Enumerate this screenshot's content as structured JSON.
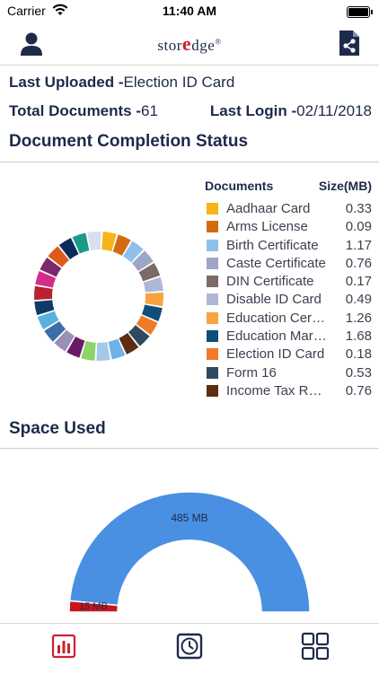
{
  "status_bar": {
    "carrier": "Carrier",
    "time": "11:40 AM"
  },
  "header": {
    "logo_text_1": "stor",
    "logo_accent": "e",
    "logo_text_2": "dge",
    "logo_mark": "®"
  },
  "summary": {
    "last_uploaded_label": "Last Uploaded -",
    "last_uploaded_value": "Election ID Card",
    "total_documents_label": "Total Documents -",
    "total_documents_value": "61",
    "last_login_label": "Last Login -",
    "last_login_value": "02/11/2018"
  },
  "completion": {
    "title": "Document Completion Status",
    "legend_header_documents": "Documents",
    "legend_header_size": "Size(MB)",
    "items": [
      {
        "name": "Aadhaar Card",
        "size": "0.33",
        "color": "#f5b41a"
      },
      {
        "name": "Arms License",
        "size": "0.09",
        "color": "#d56b10"
      },
      {
        "name": "Birth Certificate",
        "size": "1.17",
        "color": "#8ec0ec"
      },
      {
        "name": "Caste Certificate",
        "size": "0.76",
        "color": "#9ea6c6"
      },
      {
        "name": "DIN Certificate",
        "size": "0.17",
        "color": "#7b6a66"
      },
      {
        "name": "Disable ID Card",
        "size": "0.49",
        "color": "#aeb8d6"
      },
      {
        "name": "Education Certificate",
        "size": "1.26",
        "color": "#f7a440"
      },
      {
        "name": "Education Marksheet",
        "size": "1.68",
        "color": "#0e4e7a"
      },
      {
        "name": "Election ID Card",
        "size": "0.18",
        "color": "#f07a25"
      },
      {
        "name": "Form 16",
        "size": "0.53",
        "color": "#2f4a5c"
      },
      {
        "name": "Income Tax Return",
        "size": "0.76",
        "color": "#5a2e0e"
      }
    ],
    "ring_colors": [
      "#f5b41a",
      "#d56b10",
      "#8ec0ec",
      "#9ea6c6",
      "#7b6a66",
      "#aeb8d6",
      "#f7a440",
      "#0e4e7a",
      "#f07a25",
      "#2f4a5c",
      "#5a2e0e",
      "#6fb2e8",
      "#a6c8e8",
      "#8bd46a",
      "#6a1a6a",
      "#9b8fb8",
      "#3b6fa8",
      "#5cb0e0",
      "#0e3a6a",
      "#b82230",
      "#d42c8a",
      "#7a2a6a",
      "#e05a1a",
      "#0e2a5a",
      "#1a9a8a",
      "#d8e0ec"
    ]
  },
  "space": {
    "title": "Space Used",
    "used_label": "485 MB",
    "free_label": "15 MB",
    "used_mb": 485,
    "free_mb": 15,
    "used_color": "#4a90e2",
    "free_color": "#c8161d"
  }
}
